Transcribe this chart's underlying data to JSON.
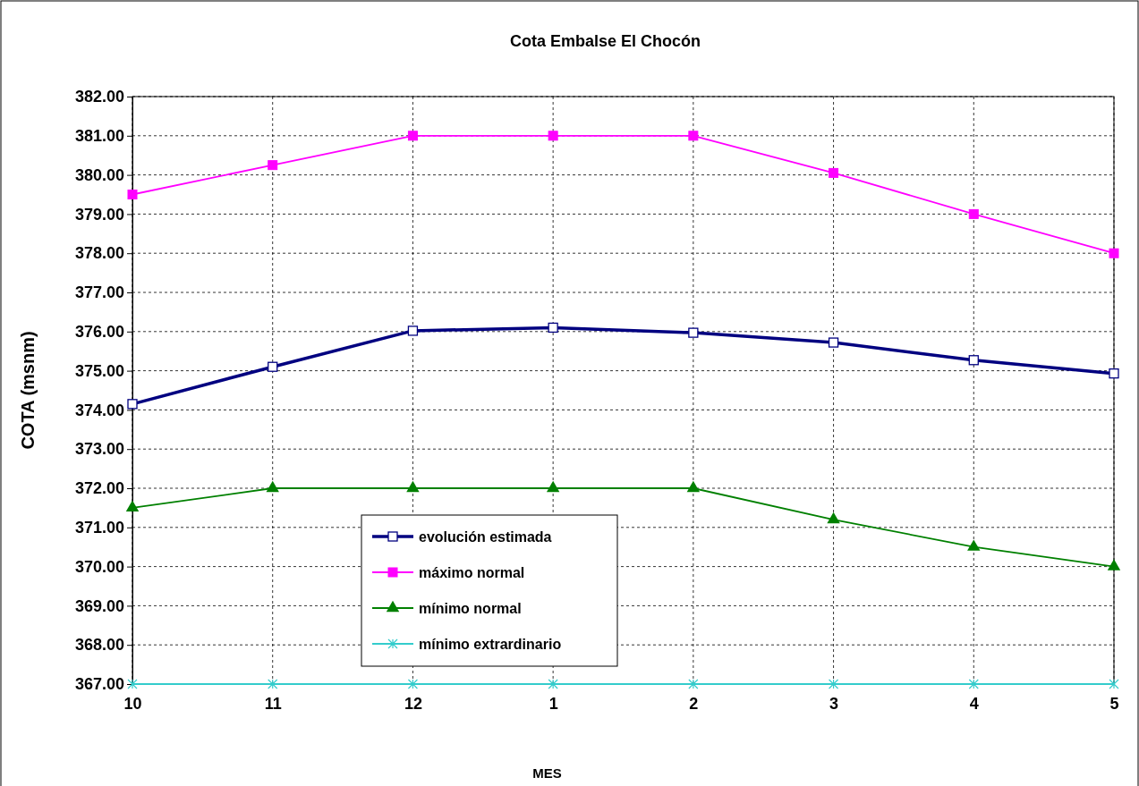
{
  "chart_data": {
    "type": "line",
    "title": "Cota Embalse El Chocón",
    "xlabel": "MES",
    "ylabel": "COTA (msnm)",
    "categories": [
      "10",
      "11",
      "12",
      "1",
      "2",
      "3",
      "4",
      "5"
    ],
    "series": [
      {
        "name": "evolución estimada",
        "color": "#000080",
        "marker": "square",
        "values": [
          374.15,
          375.1,
          376.02,
          376.1,
          375.97,
          375.72,
          375.27,
          374.93
        ]
      },
      {
        "name": "máximo normal",
        "color": "#ff00ff",
        "marker": "square",
        "values": [
          379.5,
          380.25,
          381,
          381,
          381,
          380.05,
          379,
          378
        ]
      },
      {
        "name": "mínimo normal",
        "color": "#008000",
        "marker": "triangle",
        "values": [
          371.5,
          372,
          372,
          372,
          372,
          371.2,
          370.5,
          370
        ]
      },
      {
        "name": "mínimo extrardinario",
        "color": "#33cccc",
        "marker": "cross",
        "values": [
          367,
          367,
          367,
          367,
          367,
          367,
          367,
          367
        ]
      }
    ],
    "ylim": [
      367,
      382
    ],
    "yticks": [
      {
        "value": 367,
        "label": "367.00"
      },
      {
        "value": 368,
        "label": "368.00"
      },
      {
        "value": 369,
        "label": "369.00"
      },
      {
        "value": 370,
        "label": "370.00"
      },
      {
        "value": 371,
        "label": "371.00"
      },
      {
        "value": 372,
        "label": "372.00"
      },
      {
        "value": 373,
        "label": "373.00"
      },
      {
        "value": 374,
        "label": "374.00"
      },
      {
        "value": 375,
        "label": "375.00"
      },
      {
        "value": 376,
        "label": "376.00"
      },
      {
        "value": 377,
        "label": "377.00"
      },
      {
        "value": 378,
        "label": "378.00"
      },
      {
        "value": 379,
        "label": "379.00"
      },
      {
        "value": 380,
        "label": "380.00"
      },
      {
        "value": 381,
        "label": "381.00"
      },
      {
        "value": 382,
        "label": "382.00"
      }
    ],
    "grid": true,
    "legend": "bottom",
    "line_style": "solid"
  }
}
